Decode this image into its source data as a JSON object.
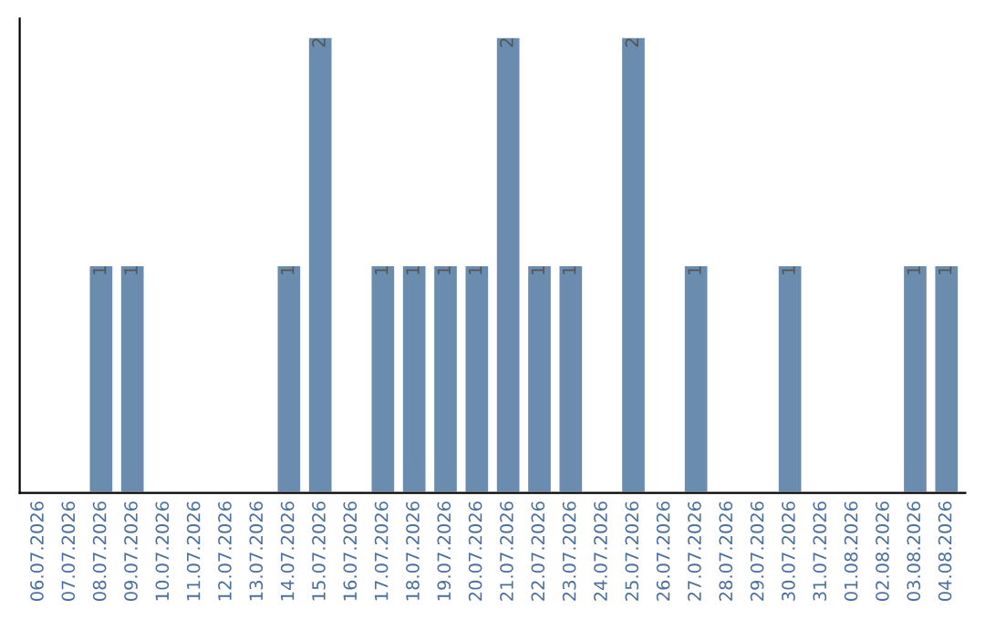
{
  "chart_data": {
    "type": "bar",
    "categories": [
      "06.07.2026",
      "07.07.2026",
      "08.07.2026",
      "09.07.2026",
      "10.07.2026",
      "11.07.2026",
      "12.07.2026",
      "13.07.2026",
      "14.07.2026",
      "15.07.2026",
      "16.07.2026",
      "17.07.2026",
      "18.07.2026",
      "19.07.2026",
      "20.07.2026",
      "21.07.2026",
      "22.07.2026",
      "23.07.2026",
      "24.07.2026",
      "25.07.2026",
      "26.07.2026",
      "27.07.2026",
      "28.07.2026",
      "29.07.2026",
      "30.07.2026",
      "31.07.2026",
      "01.08.2026",
      "02.08.2026",
      "03.08.2026",
      "04.08.2026"
    ],
    "values": [
      0,
      0,
      1,
      1,
      0,
      0,
      0,
      0,
      1,
      2,
      0,
      1,
      1,
      1,
      1,
      2,
      1,
      1,
      0,
      2,
      0,
      1,
      0,
      0,
      1,
      0,
      0,
      0,
      1,
      1
    ],
    "value_labels": [
      null,
      null,
      "1",
      "1",
      null,
      null,
      null,
      null,
      "1",
      "2",
      null,
      "1",
      "1",
      "1",
      "1",
      "2",
      "1",
      "1",
      null,
      "2",
      null,
      "1",
      null,
      null,
      "1",
      null,
      null,
      null,
      "1",
      "1"
    ],
    "color": "#6a8caf",
    "grid": false,
    "legend": false
  }
}
